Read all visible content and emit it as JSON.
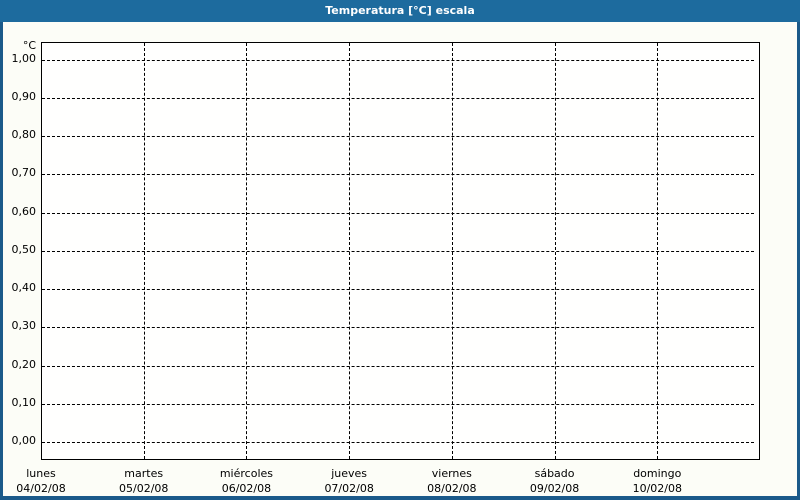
{
  "window": {
    "title": "Temperatura [°C] escala"
  },
  "colors": {
    "titlebar": "#1d6b9e",
    "frame": "#1b5a8a",
    "background": "#fcfdf7",
    "plot_background": "#fffffe",
    "grid": "#000000",
    "label_text": "#000000",
    "title_text": "#ffffff"
  },
  "chart_data": {
    "type": "line",
    "title": "Temperatura [°C] escala",
    "ylabel": "°C",
    "ylim": [
      0.0,
      1.0
    ],
    "y_tick_step": 0.1,
    "y_tick_labels": [
      "1,00",
      "0,90",
      "0,80",
      "0,70",
      "0,60",
      "0,50",
      "0,40",
      "0,30",
      "0,20",
      "0,10",
      "0,00"
    ],
    "grid": "dashed",
    "legend": "none",
    "x_days": [
      {
        "name": "lunes",
        "date": "04/02/08"
      },
      {
        "name": "martes",
        "date": "05/02/08"
      },
      {
        "name": "miércoles",
        "date": "06/02/08"
      },
      {
        "name": "jueves",
        "date": "07/02/08"
      },
      {
        "name": "viernes",
        "date": "08/02/08"
      },
      {
        "name": "sábado",
        "date": "09/02/08"
      },
      {
        "name": "domingo",
        "date": "10/02/08"
      }
    ],
    "series": []
  }
}
